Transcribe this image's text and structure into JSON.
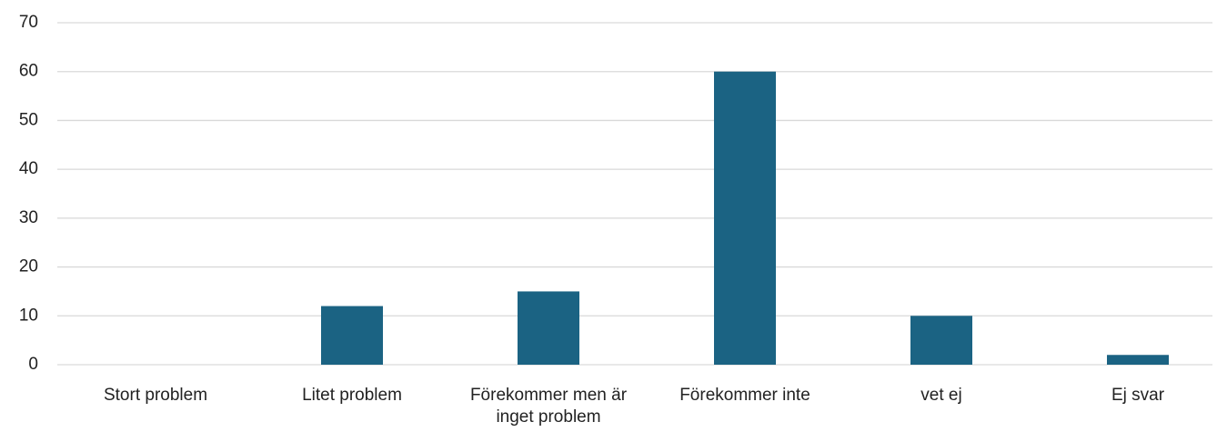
{
  "chart_data": {
    "type": "bar",
    "categories": [
      "Stort problem",
      "Litet problem",
      "Förekommer men är inget problem",
      "Förekommer inte",
      "vet ej",
      "Ej svar"
    ],
    "values": [
      0,
      12,
      15,
      60,
      10,
      2
    ],
    "color": "#1b6383",
    "ylim": [
      0,
      70
    ],
    "yticks": [
      0,
      10,
      20,
      30,
      40,
      50,
      60,
      70
    ],
    "grid": true
  }
}
